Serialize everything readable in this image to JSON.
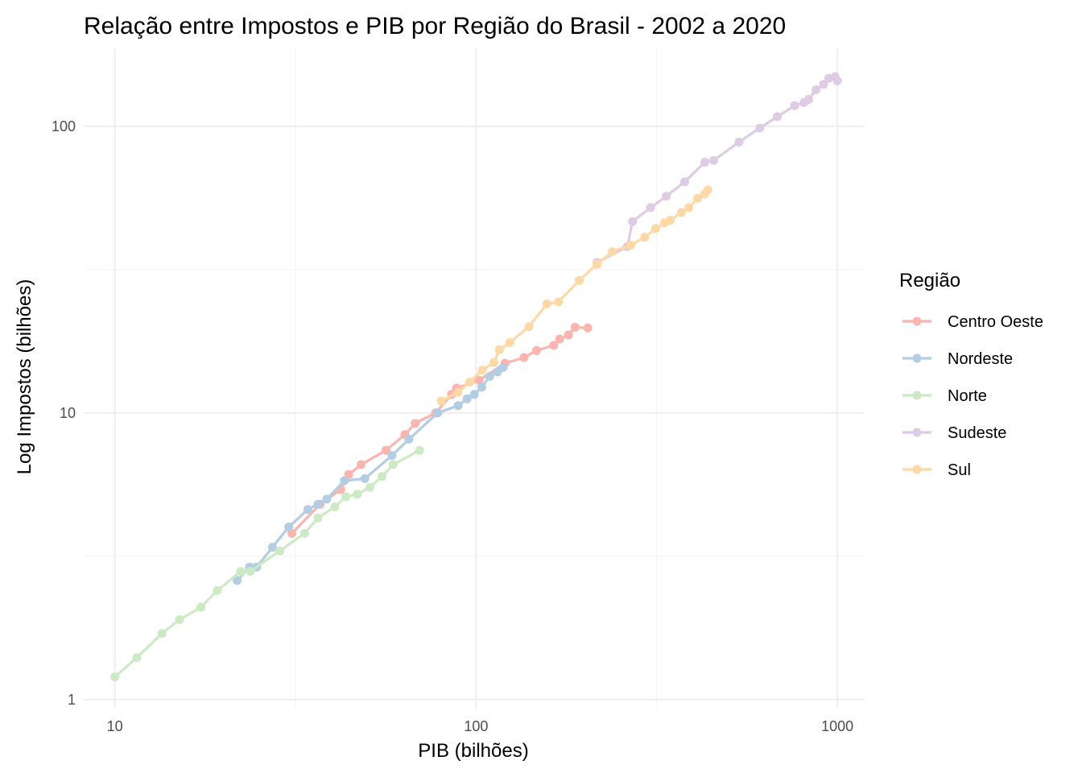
{
  "chart_data": {
    "type": "line",
    "title": "Relação entre Impostos e PIB por Região do Brasil - 2002 a 2020",
    "xlabel": "PIB (bilhões)",
    "ylabel": "Log Impostos (bilhões)",
    "x_scale": "log10",
    "y_scale": "log10",
    "xlim": [
      8.2,
      1190
    ],
    "ylim": [
      0.93,
      187
    ],
    "x_ticks": [
      10,
      100,
      1000
    ],
    "x_tick_labels": [
      "10",
      "100",
      "1000"
    ],
    "y_ticks": [
      1,
      10,
      100
    ],
    "y_tick_labels": [
      "1",
      "10",
      "100"
    ],
    "grid": true,
    "legend": {
      "title": "Região",
      "position": "right"
    },
    "series": [
      {
        "name": "Centro Oeste",
        "color": "#fbb4ae",
        "points": [
          [
            30.9,
            3.8
          ],
          [
            37.0,
            4.8
          ],
          [
            42.2,
            5.4
          ],
          [
            44.4,
            6.1
          ],
          [
            48.0,
            6.6
          ],
          [
            56.3,
            7.4
          ],
          [
            63.5,
            8.4
          ],
          [
            67.8,
            9.2
          ],
          [
            77.3,
            10.0
          ],
          [
            85.5,
            11.6
          ],
          [
            88.3,
            12.2
          ],
          [
            102.0,
            13.0
          ],
          [
            120.2,
            14.9
          ],
          [
            135.7,
            15.6
          ],
          [
            146.9,
            16.5
          ],
          [
            164.0,
            17.2
          ],
          [
            170.3,
            18.1
          ],
          [
            180.2,
            18.7
          ],
          [
            188.0,
            19.9
          ],
          [
            203.8,
            19.8
          ]
        ]
      },
      {
        "name": "Nordeste",
        "color": "#b3cde3",
        "points": [
          [
            21.8,
            2.6
          ],
          [
            23.6,
            2.9
          ],
          [
            24.7,
            2.9
          ],
          [
            27.3,
            3.4
          ],
          [
            30.3,
            4.0
          ],
          [
            34.2,
            4.6
          ],
          [
            36.5,
            4.8
          ],
          [
            38.6,
            5.0
          ],
          [
            43.2,
            5.8
          ],
          [
            49.2,
            5.9
          ],
          [
            58.5,
            7.1
          ],
          [
            65.2,
            8.1
          ],
          [
            78.3,
            10.0
          ],
          [
            89.2,
            10.6
          ],
          [
            94.4,
            11.2
          ],
          [
            98.9,
            11.6
          ],
          [
            103.7,
            12.3
          ],
          [
            109.0,
            13.4
          ],
          [
            114.6,
            13.9
          ],
          [
            118.8,
            14.4
          ]
        ]
      },
      {
        "name": "Norte",
        "color": "#ccebc5",
        "points": [
          [
            10.0,
            1.2
          ],
          [
            11.5,
            1.4
          ],
          [
            13.5,
            1.7
          ],
          [
            15.1,
            1.9
          ],
          [
            17.3,
            2.1
          ],
          [
            19.2,
            2.4
          ],
          [
            22.3,
            2.8
          ],
          [
            23.7,
            2.8
          ],
          [
            28.6,
            3.3
          ],
          [
            33.5,
            3.8
          ],
          [
            36.5,
            4.3
          ],
          [
            40.6,
            4.7
          ],
          [
            43.6,
            5.1
          ],
          [
            46.9,
            5.2
          ],
          [
            50.8,
            5.5
          ],
          [
            54.9,
            6.0
          ],
          [
            58.9,
            6.6
          ],
          [
            69.8,
            7.4
          ]
        ]
      },
      {
        "name": "Sudeste",
        "color": "#decbe4",
        "points": [
          [
            216.0,
            33.5
          ],
          [
            262.0,
            38.0
          ],
          [
            271.0,
            46.5
          ],
          [
            304.0,
            52.0
          ],
          [
            336.0,
            57.0
          ],
          [
            378.0,
            64.0
          ],
          [
            430.0,
            75.0
          ],
          [
            455.0,
            76.0
          ],
          [
            534.0,
            88.0
          ],
          [
            610.0,
            98.5
          ],
          [
            682.0,
            108.0
          ],
          [
            762.0,
            118.0
          ],
          [
            808.0,
            121.0
          ],
          [
            833.0,
            124.0
          ],
          [
            873.0,
            134.0
          ],
          [
            916.0,
            140.0
          ],
          [
            947.0,
            147.0
          ],
          [
            985.0,
            149.0
          ],
          [
            1000.0,
            144.0
          ]
        ]
      },
      {
        "name": "Sul",
        "color": "#fed9a6",
        "points": [
          [
            80.0,
            11.0
          ],
          [
            89.0,
            11.8
          ],
          [
            96.0,
            12.8
          ],
          [
            104.0,
            14.1
          ],
          [
            112.0,
            15.0
          ],
          [
            116.0,
            16.6
          ],
          [
            124.0,
            17.6
          ],
          [
            140.0,
            20.0
          ],
          [
            157.0,
            24.0
          ],
          [
            169.0,
            24.4
          ],
          [
            193.0,
            29.0
          ],
          [
            216.0,
            33.0
          ],
          [
            238.0,
            36.5
          ],
          [
            268.0,
            38.5
          ],
          [
            293.0,
            41.0
          ],
          [
            314.0,
            44.0
          ],
          [
            332.0,
            46.0
          ],
          [
            345.0,
            47.0
          ],
          [
            370.0,
            50.0
          ],
          [
            388.0,
            52.0
          ],
          [
            410.0,
            56.0
          ],
          [
            429.0,
            58.0
          ],
          [
            438.0,
            60.0
          ]
        ]
      }
    ]
  }
}
